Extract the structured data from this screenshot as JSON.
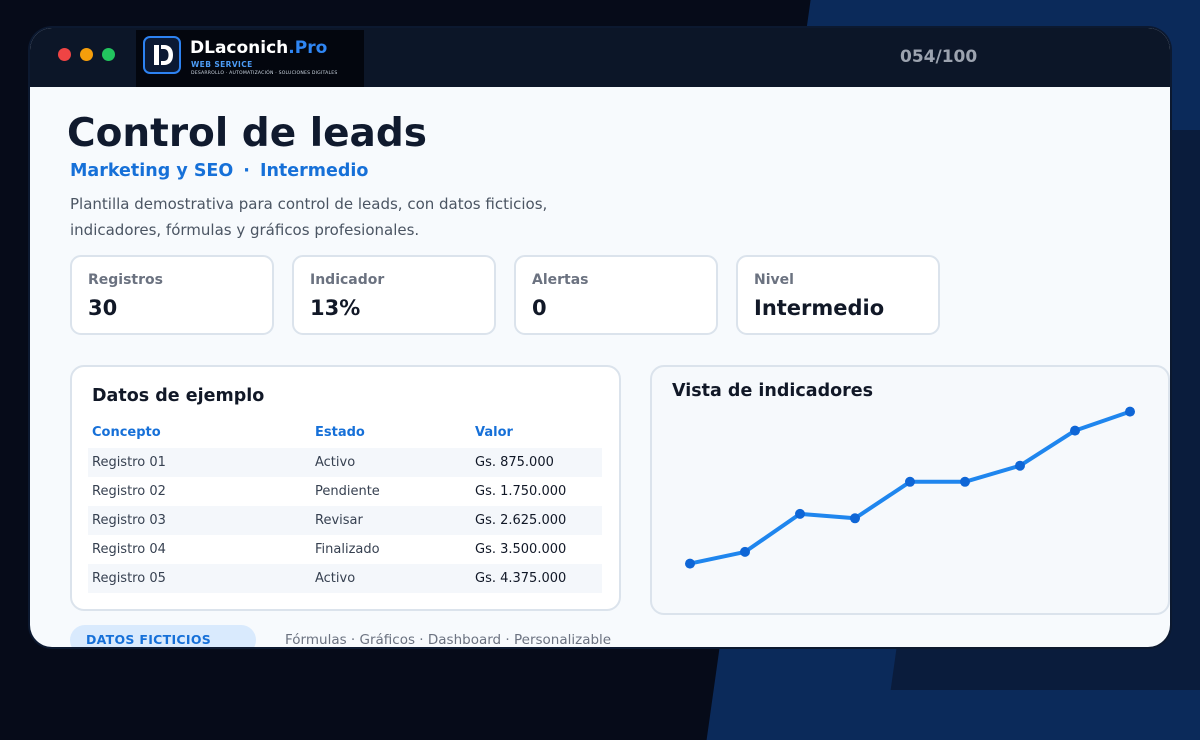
{
  "window": {
    "counter": "054/100"
  },
  "brand": {
    "name": "DLaconich",
    "name_suffix": ".Pro",
    "subtitle": "WEB SERVICE",
    "tagline": "DESARROLLO · AUTOMATIZACIÓN · SOLUCIONES DIGITALES"
  },
  "header": {
    "title": "Control de leads",
    "category": "Marketing y SEO",
    "separator": "·",
    "level": "Intermedio",
    "description": "Plantilla demostrativa para control de leads, con datos ficticios, indicadores, fórmulas y gráficos profesionales."
  },
  "kpis": [
    {
      "label": "Registros",
      "value": "30"
    },
    {
      "label": "Indicador",
      "value": "13%"
    },
    {
      "label": "Alertas",
      "value": "0"
    },
    {
      "label": "Nivel",
      "value": "Intermedio"
    }
  ],
  "table": {
    "title": "Datos de ejemplo",
    "columns": [
      "Concepto",
      "Estado",
      "Valor"
    ],
    "rows": [
      [
        "Registro 01",
        "Activo",
        "Gs. 875.000"
      ],
      [
        "Registro 02",
        "Pendiente",
        "Gs. 1.750.000"
      ],
      [
        "Registro 03",
        "Revisar",
        "Gs. 2.625.000"
      ],
      [
        "Registro 04",
        "Finalizado",
        "Gs. 3.500.000"
      ],
      [
        "Registro 05",
        "Activo",
        "Gs. 4.375.000"
      ]
    ]
  },
  "chart": {
    "title": "Vista de indicadores",
    "line_color": "#1f86ee",
    "point_color": "#0f66d6"
  },
  "chart_data": {
    "type": "line",
    "title": "Vista de indicadores",
    "xlabel": "",
    "ylabel": "",
    "grid": false,
    "x": [
      1,
      2,
      3,
      4,
      5,
      6,
      7,
      8,
      9
    ],
    "values": [
      8,
      12,
      25,
      23.5,
      36,
      36,
      41.5,
      53.5,
      60
    ],
    "ylim": [
      0,
      65
    ]
  },
  "footer": {
    "badge": "DATOS FICTICIOS",
    "features": "Fórmulas · Gráficos · Dashboard · Personalizable"
  },
  "colors": {
    "accent": "#1670d8",
    "titlebar": "#0c1628",
    "dot_red": "#ef4444",
    "dot_yellow": "#f59e0b",
    "dot_green": "#22c55e"
  }
}
